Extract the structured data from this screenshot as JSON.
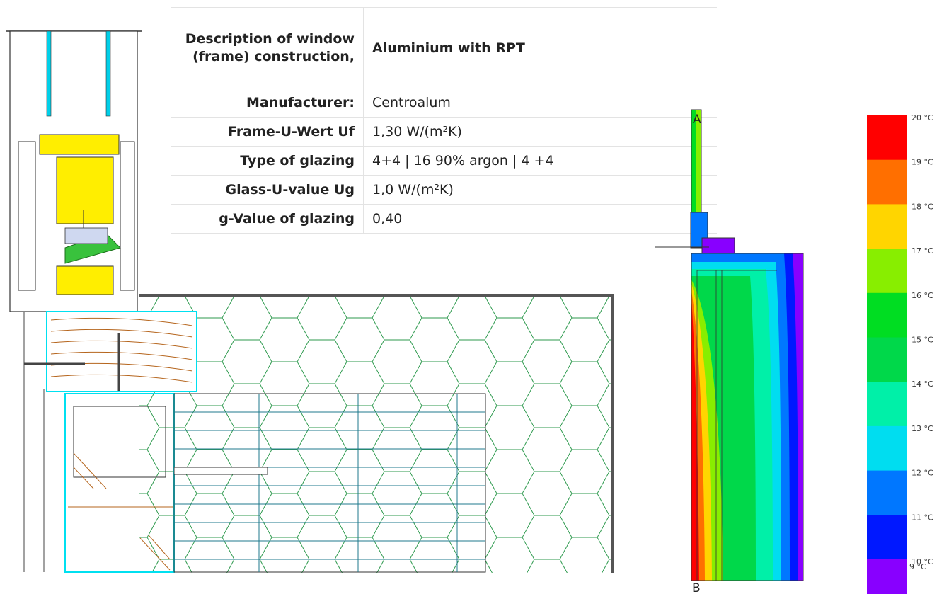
{
  "table": {
    "rows": [
      {
        "label": "Description of window (frame) construction,",
        "value": "Aluminium with RPT"
      },
      {
        "label": "Manufacturer:",
        "value": "Centroalum"
      },
      {
        "label": "Frame-U-Wert  Uf",
        "value": "1,30 W/(m²K)"
      },
      {
        "label": "Type of glazing",
        "value": "4+4 | 16 90% argon | 4 +4"
      },
      {
        "label": "Glass-U-value  Ug",
        "value": "1,0 W/(m²K)"
      },
      {
        "label": "g-Value of glazing",
        "value": "0,40"
      }
    ]
  },
  "thermal": {
    "point_a": "A",
    "point_b": "B"
  },
  "legend": {
    "bands": [
      {
        "label": "20 °C",
        "color": "#ff0000"
      },
      {
        "label": "19 °C",
        "color": "#ff6f00"
      },
      {
        "label": "18 °C",
        "color": "#ffd500"
      },
      {
        "label": "17 °C",
        "color": "#88ee00"
      },
      {
        "label": "16 °C",
        "color": "#00dd22"
      },
      {
        "label": "15 °C",
        "color": "#00d84a"
      },
      {
        "label": "14 °C",
        "color": "#00f0a8"
      },
      {
        "label": "13 °C",
        "color": "#00ddf0"
      },
      {
        "label": "12 °C",
        "color": "#0077ff"
      },
      {
        "label": "11 °C",
        "color": "#0018ff"
      },
      {
        "label": "10 °C",
        "color": "#8800ff"
      }
    ],
    "last_label": "9 °C"
  }
}
